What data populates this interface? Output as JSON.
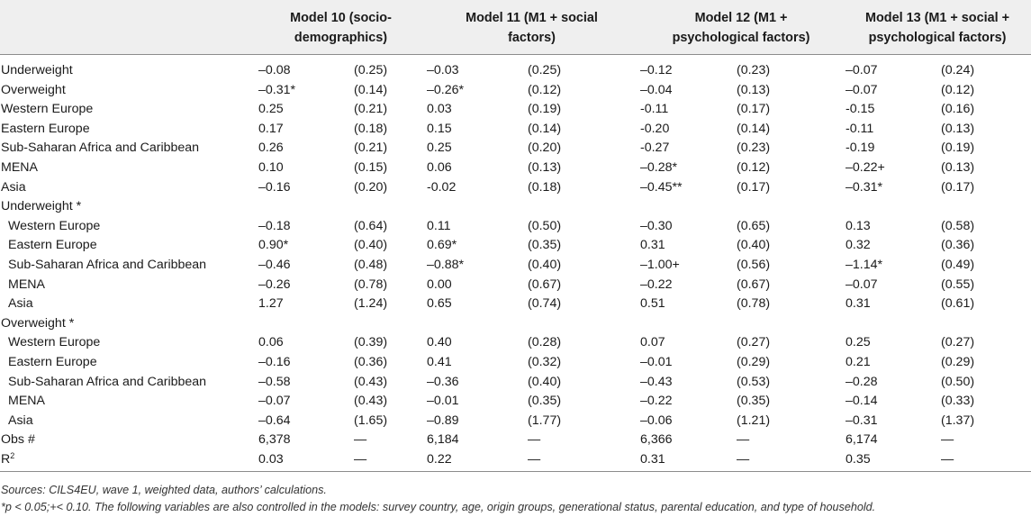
{
  "table": {
    "headers": [
      "",
      "Model 10 (socio-demographics)",
      "Model 11 (M1 + social factors)",
      "Model 12 (M1 + psychological factors)",
      "Model 13 (M1 + social + psychological factors)"
    ],
    "rows": [
      {
        "label": "Underweight",
        "m10": "–0.08",
        "m10se": "(0.25)",
        "m11": "–0.03",
        "m11se": "(0.25)",
        "m12": "–0.12",
        "m12se": "(0.23)",
        "m13": "–0.07",
        "m13se": "(0.24)"
      },
      {
        "label": "Overweight",
        "m10": "–0.31*",
        "m10se": "(0.14)",
        "m11": "–0.26*",
        "m11se": "(0.12)",
        "m12": "–0.04",
        "m12se": "(0.13)",
        "m13": "–0.07",
        "m13se": "(0.12)"
      },
      {
        "label": "Western Europe",
        "m10": "0.25",
        "m10se": "(0.21)",
        "m11": "0.03",
        "m11se": "(0.19)",
        "m12": "-0.11",
        "m12se": "(0.17)",
        "m13": "-0.15",
        "m13se": "(0.16)"
      },
      {
        "label": "Eastern Europe",
        "m10": "0.17",
        "m10se": "(0.18)",
        "m11": "0.15",
        "m11se": "(0.14)",
        "m12": "-0.20",
        "m12se": "(0.14)",
        "m13": "-0.11",
        "m13se": "(0.13)"
      },
      {
        "label": "Sub-Saharan Africa and Caribbean",
        "m10": "0.26",
        "m10se": "(0.21)",
        "m11": "0.25",
        "m11se": "(0.20)",
        "m12": "-0.27",
        "m12se": "(0.23)",
        "m13": "-0.19",
        "m13se": "(0.19)"
      },
      {
        "label": "MENA",
        "m10": "0.10",
        "m10se": "(0.15)",
        "m11": "0.06",
        "m11se": "(0.13)",
        "m12": "–0.28*",
        "m12se": "(0.12)",
        "m13": "–0.22+",
        "m13se": "(0.13)"
      },
      {
        "label": "Asia",
        "m10": "–0.16",
        "m10se": "(0.20)",
        "m11": "-0.02",
        "m11se": "(0.18)",
        "m12": "–0.45**",
        "m12se": "(0.17)",
        "m13": "–0.31*",
        "m13se": "(0.17)"
      },
      {
        "label": "Underweight *",
        "m10": "",
        "m10se": "",
        "m11": "",
        "m11se": "",
        "m12": "",
        "m12se": "",
        "m13": "",
        "m13se": ""
      },
      {
        "label": "Western Europe",
        "sub": true,
        "m10": "–0.18",
        "m10se": "(0.64)",
        "m11": "0.11",
        "m11se": "(0.50)",
        "m12": "–0.30",
        "m12se": "(0.65)",
        "m13": "0.13",
        "m13se": "(0.58)"
      },
      {
        "label": "Eastern Europe",
        "sub": true,
        "m10": "0.90*",
        "m10se": "(0.40)",
        "m11": "0.69*",
        "m11se": "(0.35)",
        "m12": "0.31",
        "m12se": "(0.40)",
        "m13": "0.32",
        "m13se": "(0.36)"
      },
      {
        "label": "Sub-Saharan Africa and Caribbean",
        "sub": true,
        "m10": "–0.46",
        "m10se": "(0.48)",
        "m11": "–0.88*",
        "m11se": "(0.40)",
        "m12": "–1.00+",
        "m12se": "(0.56)",
        "m13": "–1.14*",
        "m13se": "(0.49)"
      },
      {
        "label": "MENA",
        "sub": true,
        "m10": "–0.26",
        "m10se": "(0.78)",
        "m11": "0.00",
        "m11se": "(0.67)",
        "m12": "–0.22",
        "m12se": "(0.67)",
        "m13": "–0.07",
        "m13se": "(0.55)"
      },
      {
        "label": "Asia",
        "sub": true,
        "m10": "1.27",
        "m10se": "(1.24)",
        "m11": "0.65",
        "m11se": "(0.74)",
        "m12": "0.51",
        "m12se": "(0.78)",
        "m13": "0.31",
        "m13se": "(0.61)"
      },
      {
        "label": "Overweight *",
        "m10": "",
        "m10se": "",
        "m11": "",
        "m11se": "",
        "m12": "",
        "m12se": "",
        "m13": "",
        "m13se": ""
      },
      {
        "label": "Western Europe",
        "sub": true,
        "m10": "0.06",
        "m10se": "(0.39)",
        "m11": "0.40",
        "m11se": "(0.28)",
        "m12": "0.07",
        "m12se": "(0.27)",
        "m13": "0.25",
        "m13se": "(0.27)"
      },
      {
        "label": "Eastern Europe",
        "sub": true,
        "m10": "–0.16",
        "m10se": "(0.36)",
        "m11": "0.41",
        "m11se": "(0.32)",
        "m12": "–0.01",
        "m12se": "(0.29)",
        "m13": "0.21",
        "m13se": "(0.29)"
      },
      {
        "label": "Sub-Saharan Africa and Caribbean",
        "sub": true,
        "m10": "–0.58",
        "m10se": "(0.43)",
        "m11": "–0.36",
        "m11se": "(0.40)",
        "m12": "–0.43",
        "m12se": "(0.53)",
        "m13": "–0.28",
        "m13se": "(0.50)"
      },
      {
        "label": "MENA",
        "sub": true,
        "m10": "–0.07",
        "m10se": "(0.43)",
        "m11": "–0.01",
        "m11se": "(0.35)",
        "m12": "–0.22",
        "m12se": "(0.35)",
        "m13": "–0.14",
        "m13se": "(0.33)"
      },
      {
        "label": "Asia",
        "sub": true,
        "m10": "–0.64",
        "m10se": "(1.65)",
        "m11": "–0.89",
        "m11se": "(1.77)",
        "m12": "–0.06",
        "m12se": "(1.21)",
        "m13": "–0.31",
        "m13se": "(1.37)"
      },
      {
        "label": "Obs #",
        "m10": "6,378",
        "m10se": "—",
        "m11": "6,184",
        "m11se": "—",
        "m12": "6,366",
        "m12se": "—",
        "m13": "6,174",
        "m13se": "—"
      },
      {
        "label": "R",
        "sup": "2",
        "m10": "0.03",
        "m10se": "—",
        "m11": "0.22",
        "m11se": "—",
        "m12": "0.31",
        "m12se": "—",
        "m13": "0.35",
        "m13se": "—"
      }
    ]
  },
  "notes": [
    "Sources: CILS4EU, wave 1, weighted data, authors’ calculations.",
    "*p < 0.05;+< 0.10. The following variables are also controlled in the models: survey country, age, origin groups, generational status, parental education, and type of household."
  ]
}
